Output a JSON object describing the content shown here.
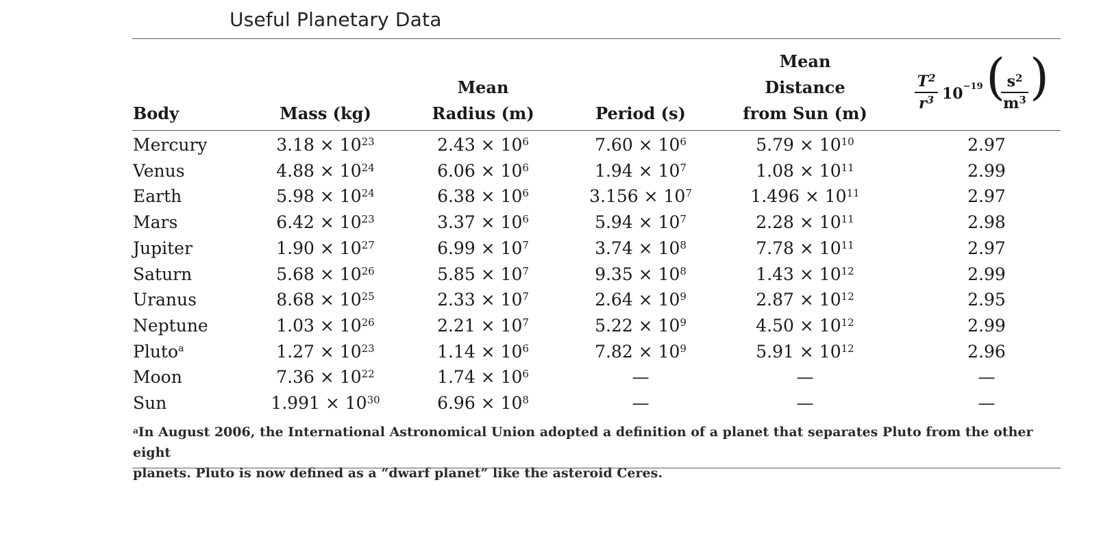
{
  "title": "Useful Planetary Data",
  "headers": {
    "body": "Body",
    "mass": "Mass (kg)",
    "radius_line1": "Mean",
    "radius_line2": "Radius (m)",
    "period": "Period (s)",
    "distance_line1": "Mean",
    "distance_line2": "Distance",
    "distance_line3": "from Sun (m)",
    "ratio_num": "T",
    "ratio_num_exp": "2",
    "ratio_den": "r",
    "ratio_den_exp": "3",
    "ratio_factor": "10",
    "ratio_factor_exp": "−19",
    "unit_num": "s",
    "unit_num_exp": "2",
    "unit_den": "m",
    "unit_den_exp": "3"
  },
  "rows": [
    {
      "body": "Mercury",
      "body_sup": "",
      "mass": "3.18 × 10",
      "mass_exp": "23",
      "radius": "2.43 × 10",
      "radius_exp": "6",
      "period": "7.60 × 10",
      "period_exp": "6",
      "distance": "5.79 × 10",
      "distance_exp": "10",
      "ratio": "2.97"
    },
    {
      "body": "Venus",
      "body_sup": "",
      "mass": "4.88 × 10",
      "mass_exp": "24",
      "radius": "6.06 × 10",
      "radius_exp": "6",
      "period": "1.94 × 10",
      "period_exp": "7",
      "distance": "1.08 × 10",
      "distance_exp": "11",
      "ratio": "2.99"
    },
    {
      "body": "Earth",
      "body_sup": "",
      "mass": "5.98 × 10",
      "mass_exp": "24",
      "radius": "6.38 × 10",
      "radius_exp": "6",
      "period": "3.156 × 10",
      "period_exp": "7",
      "distance": "1.496 × 10",
      "distance_exp": "11",
      "ratio": "2.97"
    },
    {
      "body": "Mars",
      "body_sup": "",
      "mass": "6.42 × 10",
      "mass_exp": "23",
      "radius": "3.37 × 10",
      "radius_exp": "6",
      "period": "5.94 × 10",
      "period_exp": "7",
      "distance": "2.28 × 10",
      "distance_exp": "11",
      "ratio": "2.98"
    },
    {
      "body": "Jupiter",
      "body_sup": "",
      "mass": "1.90 × 10",
      "mass_exp": "27",
      "radius": "6.99 × 10",
      "radius_exp": "7",
      "period": "3.74 × 10",
      "period_exp": "8",
      "distance": "7.78 × 10",
      "distance_exp": "11",
      "ratio": "2.97"
    },
    {
      "body": "Saturn",
      "body_sup": "",
      "mass": "5.68 × 10",
      "mass_exp": "26",
      "radius": "5.85 × 10",
      "radius_exp": "7",
      "period": "9.35 × 10",
      "period_exp": "8",
      "distance": "1.43 × 10",
      "distance_exp": "12",
      "ratio": "2.99"
    },
    {
      "body": "Uranus",
      "body_sup": "",
      "mass": "8.68 × 10",
      "mass_exp": "25",
      "radius": "2.33 × 10",
      "radius_exp": "7",
      "period": "2.64 × 10",
      "period_exp": "9",
      "distance": "2.87 × 10",
      "distance_exp": "12",
      "ratio": "2.95"
    },
    {
      "body": "Neptune",
      "body_sup": "",
      "mass": "1.03 × 10",
      "mass_exp": "26",
      "radius": "2.21 × 10",
      "radius_exp": "7",
      "period": "5.22 × 10",
      "period_exp": "9",
      "distance": "4.50 × 10",
      "distance_exp": "12",
      "ratio": "2.99"
    },
    {
      "body": "Pluto",
      "body_sup": "a",
      "mass": "1.27 × 10",
      "mass_exp": "23",
      "radius": "1.14 × 10",
      "radius_exp": "6",
      "period": "7.82 × 10",
      "period_exp": "9",
      "distance": "5.91 × 10",
      "distance_exp": "12",
      "ratio": "2.96"
    },
    {
      "body": "Moon",
      "body_sup": "",
      "mass": "7.36 × 10",
      "mass_exp": "22",
      "radius": "1.74 × 10",
      "radius_exp": "6",
      "period": "—",
      "period_exp": "",
      "distance": "—",
      "distance_exp": "",
      "ratio": "—"
    },
    {
      "body": "Sun",
      "body_sup": "",
      "mass": "1.991 × 10",
      "mass_exp": "30",
      "radius": "6.96 × 10",
      "radius_exp": "8",
      "period": "—",
      "period_exp": "",
      "distance": "—",
      "distance_exp": "",
      "ratio": "—"
    }
  ],
  "footnote": {
    "marker": "a",
    "line1": "In August 2006, the International Astronomical Union adopted a definition of a planet that separates Pluto from the other eight",
    "line2": "planets. Pluto is now defined as a “dwarf planet” like the asteroid Ceres."
  }
}
